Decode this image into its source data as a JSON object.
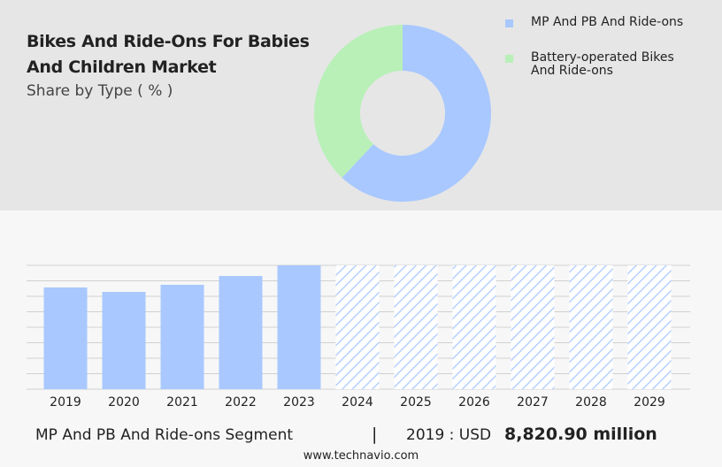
{
  "header": {
    "title": "Bikes And Ride-Ons For Babies And Children Market",
    "subtitle": "Share by Type ( % )"
  },
  "chart_data": [
    {
      "type": "pie",
      "donut": true,
      "categories": [
        "MP And PB And Ride-ons",
        "Battery-operated Bikes And Ride-ons"
      ],
      "values": [
        62,
        38
      ],
      "colors": [
        "#a8c8ff",
        "#b8f0b8"
      ]
    },
    {
      "type": "bar",
      "categories": [
        "2019",
        "2020",
        "2021",
        "2022",
        "2023",
        "2024",
        "2025",
        "2026",
        "2027",
        "2028",
        "2029"
      ],
      "values": [
        8820.9,
        8437,
        9052,
        9819,
        10740,
        null,
        null,
        null,
        null,
        null,
        null
      ],
      "color": "#a8c8ff",
      "ylim": [
        0,
        10740
      ],
      "grid": true
    }
  ],
  "footer": {
    "segment": "MP And PB And Ride-ons Segment",
    "separator": "|",
    "year_label": "2019 : USD",
    "value": "8,820.90 million",
    "website": "www.technavio.com"
  }
}
